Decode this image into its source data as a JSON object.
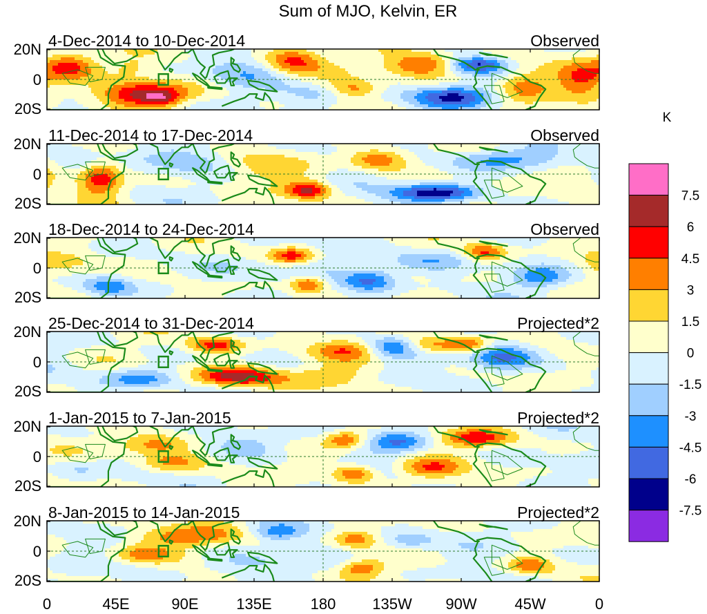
{
  "figure": {
    "title": "Sum of MJO, Kelvin, ER",
    "units_label": "K"
  },
  "panels": [
    {
      "period": "4-Dec-2014 to 10-Dec-2014",
      "kind": "Observed"
    },
    {
      "period": "11-Dec-2014 to 17-Dec-2014",
      "kind": "Observed"
    },
    {
      "period": "18-Dec-2014 to 24-Dec-2014",
      "kind": "Observed"
    },
    {
      "period": "25-Dec-2014 to 31-Dec-2014",
      "kind": "Projected*2"
    },
    {
      "period": "1-Jan-2015 to 7-Jan-2015",
      "kind": "Projected*2"
    },
    {
      "period": "8-Jan-2015 to 14-Jan-2015",
      "kind": "Projected*2"
    }
  ],
  "lat_ticks": [
    "20N",
    "0",
    "20S"
  ],
  "lon_ticks": [
    "0",
    "45E",
    "90E",
    "135E",
    "180",
    "135W",
    "90W",
    "45W",
    "0"
  ],
  "colorbar": {
    "labels": [
      "7.5",
      "6",
      "4.5",
      "3",
      "1.5",
      "0",
      "-1.5",
      "-3",
      "-4.5",
      "-6",
      "-7.5"
    ],
    "colors": [
      "#ff6ec7",
      "#a52a2a",
      "#ff0000",
      "#ff7f00",
      "#ffd633",
      "#ffffcc",
      "#d9f2ff",
      "#a0cfff",
      "#1e90ff",
      "#4169e1",
      "#00008b",
      "#8b2be2"
    ]
  },
  "style": {
    "coast_color": "#1a8a1a",
    "border_color": "#1a8a1a"
  },
  "anomalies": [
    [
      {
        "lon": 15,
        "lat": 12,
        "sx": 12,
        "sy": 8,
        "amp": 5
      },
      {
        "lon": 55,
        "lat": 10,
        "sx": 10,
        "sy": 6,
        "amp": 2
      },
      {
        "lon": 62,
        "lat": -12,
        "sx": 20,
        "sy": 7,
        "amp": 6.5
      },
      {
        "lon": 75,
        "lat": -16,
        "sx": 8,
        "sy": 4,
        "amp": 3
      },
      {
        "lon": 130,
        "lat": 8,
        "sx": 25,
        "sy": 8,
        "amp": -2
      },
      {
        "lon": 160,
        "lat": 15,
        "sx": 14,
        "sy": 8,
        "amp": 5.5
      },
      {
        "lon": 175,
        "lat": -12,
        "sx": 15,
        "sy": 6,
        "amp": -2.5
      },
      {
        "lon": 200,
        "lat": -8,
        "sx": 12,
        "sy": 5,
        "amp": 3.5
      },
      {
        "lon": 245,
        "lat": 12,
        "sx": 18,
        "sy": 7,
        "amp": 5.5
      },
      {
        "lon": 265,
        "lat": -14,
        "sx": 18,
        "sy": 6,
        "amp": -6
      },
      {
        "lon": 280,
        "lat": 12,
        "sx": 14,
        "sy": 5,
        "amp": -6.5
      },
      {
        "lon": 310,
        "lat": -5,
        "sx": 12,
        "sy": 8,
        "amp": 4
      },
      {
        "lon": 350,
        "lat": 0,
        "sx": 12,
        "sy": 12,
        "amp": 4
      }
    ],
    [
      {
        "lon": 35,
        "lat": -4,
        "sx": 10,
        "sy": 10,
        "amp": 6
      },
      {
        "lon": 20,
        "lat": 8,
        "sx": 14,
        "sy": 8,
        "amp": -2.5
      },
      {
        "lon": 90,
        "lat": 10,
        "sx": 20,
        "sy": 8,
        "amp": -2
      },
      {
        "lon": 135,
        "lat": 5,
        "sx": 20,
        "sy": 8,
        "amp": 2
      },
      {
        "lon": 170,
        "lat": -13,
        "sx": 10,
        "sy": 5,
        "amp": 6
      },
      {
        "lon": 215,
        "lat": 12,
        "sx": 14,
        "sy": 6,
        "amp": 5
      },
      {
        "lon": 255,
        "lat": -15,
        "sx": 20,
        "sy": 5,
        "amp": -7
      },
      {
        "lon": 300,
        "lat": 12,
        "sx": 25,
        "sy": 6,
        "amp": -4
      },
      {
        "lon": 345,
        "lat": -5,
        "sx": 15,
        "sy": 10,
        "amp": 2.5
      }
    ],
    [
      {
        "lon": 15,
        "lat": 5,
        "sx": 16,
        "sy": 10,
        "amp": 2.5
      },
      {
        "lon": 40,
        "lat": -15,
        "sx": 10,
        "sy": 5,
        "amp": -3.5
      },
      {
        "lon": 160,
        "lat": 10,
        "sx": 10,
        "sy": 5,
        "amp": 5.5
      },
      {
        "lon": 170,
        "lat": -13,
        "sx": 8,
        "sy": 5,
        "amp": 5
      },
      {
        "lon": 210,
        "lat": -10,
        "sx": 12,
        "sy": 7,
        "amp": -5
      },
      {
        "lon": 240,
        "lat": 5,
        "sx": 20,
        "sy": 6,
        "amp": -3
      },
      {
        "lon": 285,
        "lat": 13,
        "sx": 10,
        "sy": 5,
        "amp": 5
      },
      {
        "lon": 320,
        "lat": -8,
        "sx": 12,
        "sy": 6,
        "amp": -4
      },
      {
        "lon": 120,
        "lat": -2,
        "sx": 18,
        "sy": 8,
        "amp": -2
      }
    ],
    [
      {
        "lon": 125,
        "lat": -12,
        "sx": 20,
        "sy": 6,
        "amp": 7
      },
      {
        "lon": 110,
        "lat": 14,
        "sx": 12,
        "sy": 5,
        "amp": 5.5
      },
      {
        "lon": 60,
        "lat": -14,
        "sx": 18,
        "sy": 6,
        "amp": -4
      },
      {
        "lon": 195,
        "lat": 10,
        "sx": 15,
        "sy": 6,
        "amp": 3.5
      },
      {
        "lon": 225,
        "lat": 12,
        "sx": 12,
        "sy": 6,
        "amp": -4
      },
      {
        "lon": 250,
        "lat": 14,
        "sx": 12,
        "sy": 5,
        "amp": 4
      },
      {
        "lon": 295,
        "lat": 5,
        "sx": 16,
        "sy": 8,
        "amp": -5
      },
      {
        "lon": 275,
        "lat": 14,
        "sx": 10,
        "sy": 5,
        "amp": 5
      },
      {
        "lon": 180,
        "lat": -12,
        "sx": 20,
        "sy": 6,
        "amp": 2
      }
    ],
    [
      {
        "lon": 70,
        "lat": 10,
        "sx": 18,
        "sy": 6,
        "amp": 4.5
      },
      {
        "lon": 80,
        "lat": -5,
        "sx": 15,
        "sy": 6,
        "amp": 3
      },
      {
        "lon": 195,
        "lat": 14,
        "sx": 10,
        "sy": 5,
        "amp": 5
      },
      {
        "lon": 230,
        "lat": 12,
        "sx": 14,
        "sy": 6,
        "amp": -4
      },
      {
        "lon": 200,
        "lat": -14,
        "sx": 10,
        "sy": 5,
        "amp": 5
      },
      {
        "lon": 250,
        "lat": -10,
        "sx": 14,
        "sy": 6,
        "amp": 4
      },
      {
        "lon": 280,
        "lat": 15,
        "sx": 16,
        "sy": 5,
        "amp": 5
      },
      {
        "lon": 130,
        "lat": 12,
        "sx": 20,
        "sy": 8,
        "amp": -2.5
      },
      {
        "lon": 20,
        "lat": -10,
        "sx": 12,
        "sy": 6,
        "amp": -2
      }
    ],
    [
      {
        "lon": 95,
        "lat": 12,
        "sx": 25,
        "sy": 6,
        "amp": 4
      },
      {
        "lon": 60,
        "lat": -3,
        "sx": 15,
        "sy": 5,
        "amp": 3
      },
      {
        "lon": 150,
        "lat": 15,
        "sx": 12,
        "sy": 5,
        "amp": -4
      },
      {
        "lon": 200,
        "lat": 10,
        "sx": 10,
        "sy": 5,
        "amp": 4
      },
      {
        "lon": 205,
        "lat": -14,
        "sx": 10,
        "sy": 5,
        "amp": 4
      },
      {
        "lon": 235,
        "lat": 8,
        "sx": 12,
        "sy": 6,
        "amp": -3
      },
      {
        "lon": 315,
        "lat": -12,
        "sx": 10,
        "sy": 5,
        "amp": 4
      },
      {
        "lon": 130,
        "lat": -10,
        "sx": 20,
        "sy": 6,
        "amp": -2
      }
    ]
  ]
}
